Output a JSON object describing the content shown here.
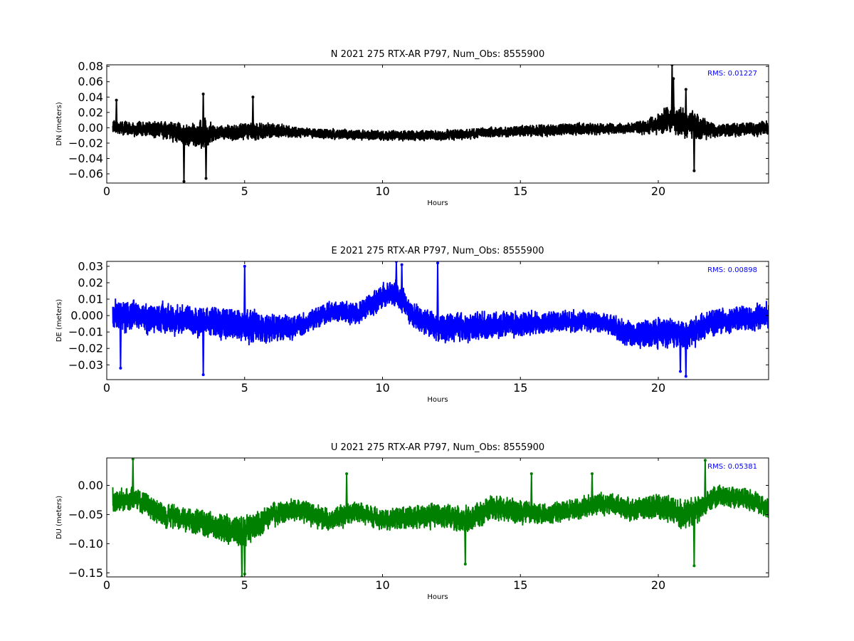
{
  "figure": {
    "background": "#ffffff"
  },
  "chart_data": [
    {
      "type": "line",
      "title": "N 2021 275 RTX-AR  P797, Num_Obs: 8555900",
      "xlabel": "Hours",
      "ylabel": "DN (meters)",
      "xlim": [
        0,
        24
      ],
      "ylim": [
        -0.072,
        0.082
      ],
      "xticks": [
        0,
        5,
        10,
        15,
        20
      ],
      "xtick_labels": [
        "0",
        "5",
        "10",
        "15",
        "20"
      ],
      "yticks": [
        -0.06,
        -0.04,
        -0.02,
        0.0,
        0.02,
        0.04,
        0.06,
        0.08
      ],
      "ytick_labels": [
        "−0.06",
        "−0.04",
        "−0.02",
        "0.00",
        "0.02",
        "0.04",
        "0.06",
        "0.08"
      ],
      "annotation": "RMS:  0.01227",
      "annotation_color": "#0000ff",
      "grid": false,
      "series": [
        {
          "color": "#000000",
          "x_range": [
            0.22,
            24
          ],
          "mean": [
            [
              0.2,
              0.0
            ],
            [
              2.0,
              -0.002
            ],
            [
              3.0,
              -0.01
            ],
            [
              4.0,
              -0.006
            ],
            [
              6.0,
              -0.004
            ],
            [
              8.0,
              -0.008
            ],
            [
              10.0,
              -0.01
            ],
            [
              12.0,
              -0.01
            ],
            [
              14.0,
              -0.006
            ],
            [
              16.0,
              -0.003
            ],
            [
              18.0,
              -0.001
            ],
            [
              19.5,
              0.0
            ],
            [
              20.5,
              0.012
            ],
            [
              21.0,
              0.006
            ],
            [
              22.0,
              -0.004
            ],
            [
              24.0,
              0.0
            ]
          ],
          "spread": [
            [
              0.2,
              0.012
            ],
            [
              2.0,
              0.016
            ],
            [
              3.0,
              0.024
            ],
            [
              3.5,
              0.03
            ],
            [
              4.0,
              0.014
            ],
            [
              5.5,
              0.018
            ],
            [
              7.0,
              0.01
            ],
            [
              10.0,
              0.01
            ],
            [
              14.0,
              0.01
            ],
            [
              16.0,
              0.012
            ],
            [
              17.0,
              0.012
            ],
            [
              19.0,
              0.01
            ],
            [
              19.8,
              0.018
            ],
            [
              20.5,
              0.03
            ],
            [
              21.0,
              0.032
            ],
            [
              21.6,
              0.022
            ],
            [
              22.2,
              0.012
            ],
            [
              24.0,
              0.014
            ]
          ],
          "extremes": [
            [
              0.35,
              0.036
            ],
            [
              2.8,
              -0.07
            ],
            [
              3.5,
              0.044
            ],
            [
              3.6,
              -0.066
            ],
            [
              5.3,
              0.04
            ],
            [
              20.5,
              0.082
            ],
            [
              20.55,
              0.064
            ],
            [
              21.3,
              -0.056
            ],
            [
              21.0,
              0.05
            ]
          ]
        }
      ]
    },
    {
      "type": "line",
      "title": "E 2021 275 RTX-AR  P797, Num_Obs: 8555900",
      "xlabel": "Hours",
      "ylabel": "DE (meters)",
      "xlim": [
        0,
        24
      ],
      "ylim": [
        -0.039,
        0.033
      ],
      "xticks": [
        0,
        5,
        10,
        15,
        20
      ],
      "xtick_labels": [
        "0",
        "5",
        "10",
        "15",
        "20"
      ],
      "yticks": [
        -0.03,
        -0.02,
        -0.01,
        0.0,
        0.01,
        0.02,
        0.03
      ],
      "ytick_labels": [
        "−0.03",
        "−0.02",
        "−0.01",
        "0.000",
        "0.01",
        "0.02",
        "0.03"
      ],
      "annotation": "RMS:  0.00898",
      "annotation_color": "#0000ff",
      "grid": false,
      "series": [
        {
          "color": "#0000ff",
          "x_range": [
            0.22,
            24
          ],
          "mean": [
            [
              0.2,
              0.0
            ],
            [
              2.0,
              -0.002
            ],
            [
              4.0,
              -0.004
            ],
            [
              6.0,
              -0.008
            ],
            [
              7.0,
              -0.006
            ],
            [
              8.0,
              0.002
            ],
            [
              9.2,
              0.002
            ],
            [
              10.0,
              0.012
            ],
            [
              10.5,
              0.014
            ],
            [
              11.0,
              0.002
            ],
            [
              12.0,
              -0.008
            ],
            [
              14.0,
              -0.006
            ],
            [
              16.0,
              -0.004
            ],
            [
              18.0,
              -0.004
            ],
            [
              19.0,
              -0.012
            ],
            [
              20.0,
              -0.01
            ],
            [
              21.0,
              -0.012
            ],
            [
              22.0,
              -0.004
            ],
            [
              24.0,
              0.0
            ]
          ],
          "spread": [
            [
              0.2,
              0.014
            ],
            [
              3.0,
              0.014
            ],
            [
              5.0,
              0.016
            ],
            [
              6.0,
              0.014
            ],
            [
              7.0,
              0.01
            ],
            [
              9.0,
              0.01
            ],
            [
              10.2,
              0.012
            ],
            [
              11.0,
              0.012
            ],
            [
              13.0,
              0.014
            ],
            [
              16.0,
              0.01
            ],
            [
              18.0,
              0.01
            ],
            [
              20.0,
              0.014
            ],
            [
              21.0,
              0.014
            ],
            [
              23.0,
              0.012
            ],
            [
              24.0,
              0.012
            ]
          ],
          "extremes": [
            [
              0.5,
              -0.032
            ],
            [
              3.5,
              -0.036
            ],
            [
              5.0,
              0.03
            ],
            [
              10.5,
              0.033
            ],
            [
              10.7,
              0.031
            ],
            [
              12.0,
              0.032
            ],
            [
              21.0,
              -0.037
            ],
            [
              20.8,
              -0.034
            ]
          ]
        }
      ]
    },
    {
      "type": "line",
      "title": "U 2021 275 RTX-AR  P797, Num_Obs: 8555900",
      "xlabel": "Hours",
      "ylabel": "DU (meters)",
      "xlim": [
        0,
        24
      ],
      "ylim": [
        -0.157,
        0.047
      ],
      "xticks": [
        0,
        5,
        10,
        15,
        20
      ],
      "xtick_labels": [
        "0",
        "5",
        "10",
        "15",
        "20"
      ],
      "yticks": [
        -0.15,
        -0.1,
        -0.05,
        0.0
      ],
      "ytick_labels": [
        "−0.15",
        "−0.10",
        "−0.05",
        "0.00"
      ],
      "annotation": "RMS:  0.05381",
      "annotation_color": "#0000ff",
      "grid": false,
      "series": [
        {
          "color": "#008000",
          "x_range": [
            0.22,
            24
          ],
          "mean": [
            [
              0.2,
              -0.03
            ],
            [
              1.0,
              -0.02
            ],
            [
              2.0,
              -0.05
            ],
            [
              3.0,
              -0.06
            ],
            [
              4.0,
              -0.07
            ],
            [
              5.0,
              -0.08
            ],
            [
              6.0,
              -0.05
            ],
            [
              7.0,
              -0.04
            ],
            [
              8.0,
              -0.06
            ],
            [
              9.0,
              -0.045
            ],
            [
              10.0,
              -0.06
            ],
            [
              11.0,
              -0.055
            ],
            [
              12.0,
              -0.05
            ],
            [
              13.0,
              -0.06
            ],
            [
              14.0,
              -0.04
            ],
            [
              15.0,
              -0.045
            ],
            [
              16.0,
              -0.05
            ],
            [
              17.0,
              -0.04
            ],
            [
              18.0,
              -0.03
            ],
            [
              19.0,
              -0.04
            ],
            [
              20.0,
              -0.035
            ],
            [
              21.0,
              -0.05
            ],
            [
              21.5,
              -0.04
            ],
            [
              22.0,
              -0.02
            ],
            [
              23.0,
              -0.02
            ],
            [
              24.0,
              -0.04
            ]
          ],
          "spread": [
            [
              0.2,
              0.03
            ],
            [
              3.0,
              0.032
            ],
            [
              5.0,
              0.04
            ],
            [
              6.0,
              0.03
            ],
            [
              10.0,
              0.028
            ],
            [
              13.0,
              0.035
            ],
            [
              16.0,
              0.028
            ],
            [
              19.0,
              0.03
            ],
            [
              21.0,
              0.04
            ],
            [
              22.0,
              0.03
            ],
            [
              24.0,
              0.028
            ]
          ],
          "extremes": [
            [
              0.95,
              0.045
            ],
            [
              4.9,
              -0.157
            ],
            [
              5.0,
              -0.152
            ],
            [
              8.7,
              0.02
            ],
            [
              13.0,
              -0.135
            ],
            [
              15.4,
              0.02
            ],
            [
              17.6,
              0.02
            ],
            [
              21.3,
              -0.138
            ],
            [
              21.7,
              0.043
            ]
          ]
        }
      ]
    }
  ]
}
